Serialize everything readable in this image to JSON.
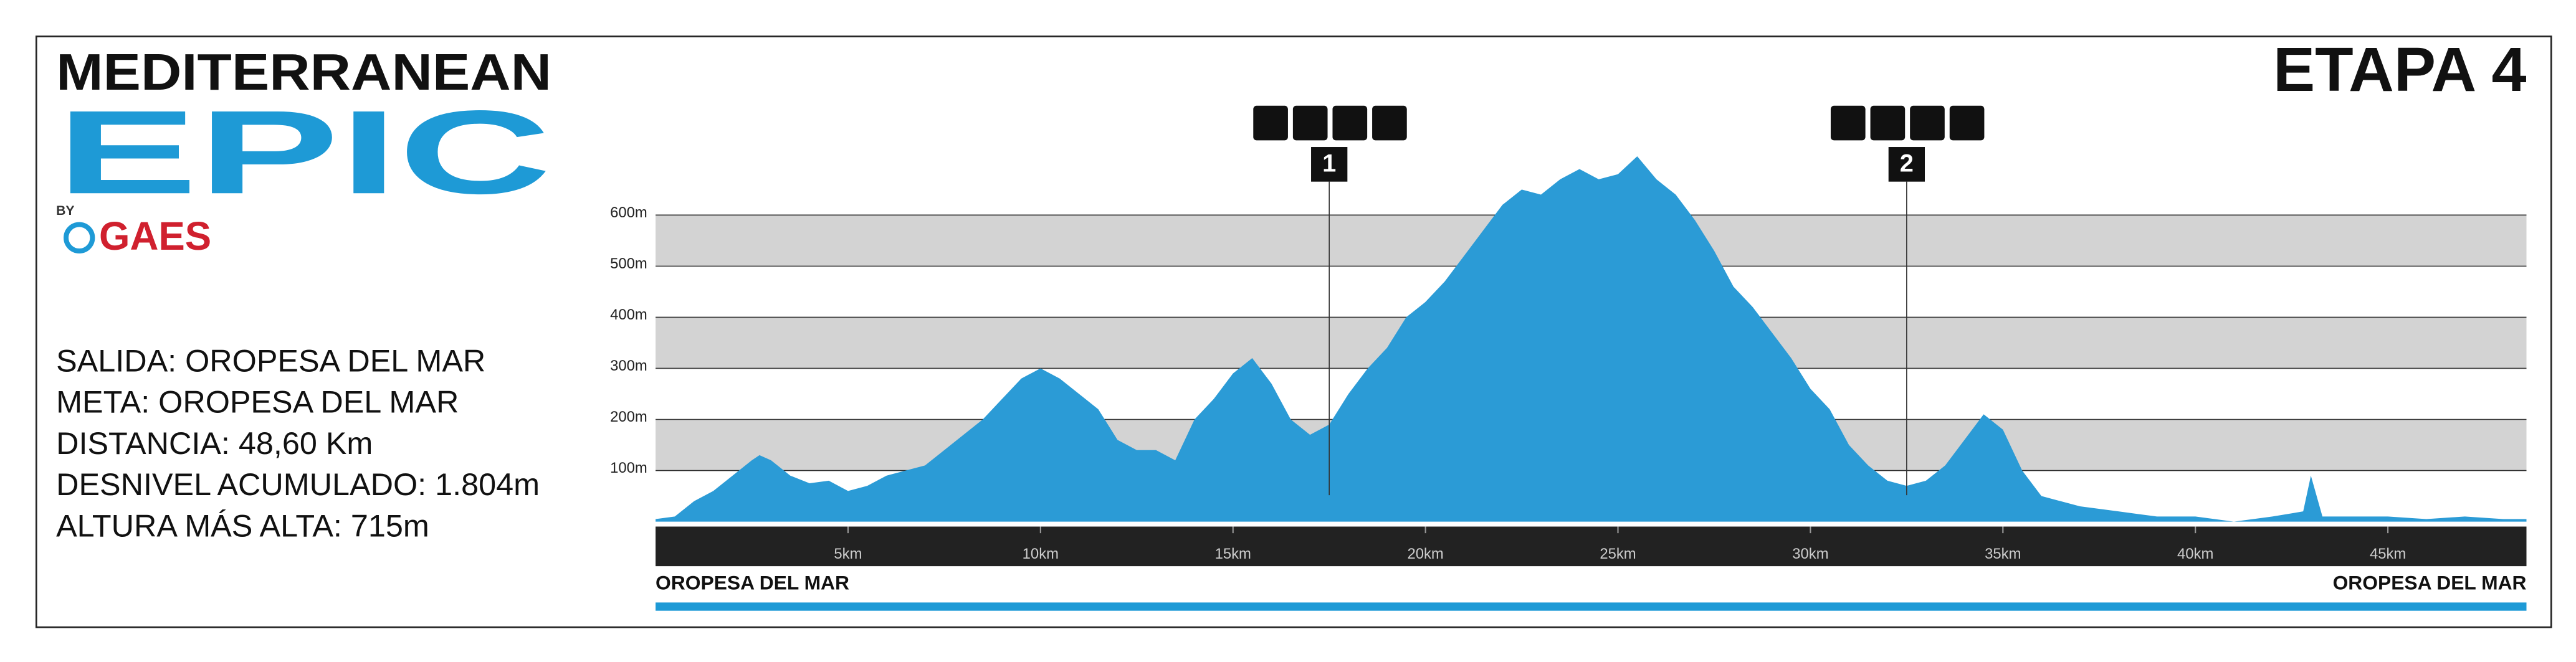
{
  "logo": {
    "line1": "MEDITERRANEAN",
    "line2": "EPIC",
    "by": "BY",
    "sponsor": "GAES"
  },
  "info": [
    "SALIDA: OROPESA DEL MAR",
    "META: OROPESA DEL MAR",
    "DISTANCIA: 48,60 Km",
    "DESNIVEL ACUMULADO: 1.804m",
    "ALTURA MÁS ALTA: 715m"
  ],
  "chart_data": {
    "type": "area",
    "title": "ETAPA 4",
    "color": "#2b9bd6",
    "x": [
      0,
      0.5,
      1,
      1.5,
      2,
      2.5,
      2.7,
      3,
      3.5,
      4,
      4.5,
      5,
      5.5,
      6,
      6.5,
      7,
      7.5,
      8,
      8.5,
      9,
      9.5,
      10,
      10.5,
      11,
      11.5,
      12,
      12.5,
      13,
      13.5,
      14,
      14.5,
      15,
      15.5,
      16,
      16.5,
      17,
      17.5,
      18,
      18.5,
      19,
      19.5,
      20,
      20.5,
      21,
      21.5,
      22,
      22.5,
      23,
      23.5,
      24,
      24.5,
      25,
      25.5,
      26,
      26.5,
      27,
      27.5,
      28,
      28.5,
      29,
      29.5,
      30,
      30.5,
      31,
      31.5,
      32,
      32.5,
      33,
      33.5,
      34,
      34.5,
      35,
      35.5,
      36,
      36.5,
      37,
      38,
      39,
      40,
      41,
      42,
      42.8,
      43,
      43.3,
      44,
      45,
      46,
      47,
      48,
      48.6
    ],
    "values": [
      5,
      10,
      40,
      60,
      90,
      120,
      130,
      120,
      90,
      75,
      80,
      60,
      70,
      90,
      100,
      110,
      140,
      170,
      200,
      240,
      280,
      300,
      280,
      250,
      220,
      160,
      140,
      140,
      120,
      200,
      240,
      290,
      320,
      270,
      200,
      170,
      190,
      250,
      300,
      340,
      400,
      430,
      470,
      520,
      570,
      620,
      650,
      640,
      670,
      690,
      670,
      680,
      715,
      670,
      640,
      590,
      530,
      460,
      420,
      370,
      320,
      260,
      220,
      150,
      110,
      80,
      70,
      80,
      110,
      160,
      210,
      180,
      100,
      50,
      40,
      30,
      20,
      10,
      10,
      0,
      10,
      20,
      90,
      10,
      10,
      10,
      5,
      10,
      5,
      5
    ],
    "xlim": [
      0,
      48.6
    ],
    "ylim": [
      0,
      730
    ],
    "xticks": [
      {
        "value": 5,
        "label": "5km"
      },
      {
        "value": 10,
        "label": "10km"
      },
      {
        "value": 15,
        "label": "15km"
      },
      {
        "value": 20,
        "label": "20km"
      },
      {
        "value": 25,
        "label": "25km"
      },
      {
        "value": 30,
        "label": "30km"
      },
      {
        "value": 35,
        "label": "35km"
      },
      {
        "value": 40,
        "label": "40km"
      },
      {
        "value": 45,
        "label": "45km"
      }
    ],
    "yticks": [
      {
        "value": 100,
        "label": "100m"
      },
      {
        "value": 200,
        "label": "200m"
      },
      {
        "value": 300,
        "label": "300m"
      },
      {
        "value": 400,
        "label": "400m"
      },
      {
        "value": 500,
        "label": "500m"
      },
      {
        "value": 600,
        "label": "600m"
      }
    ],
    "grid": true,
    "start_label": "OROPESA DEL MAR",
    "finish_label": "OROPESA DEL MAR",
    "annotations": [
      {
        "x": 17.5,
        "label": "1"
      },
      {
        "x": 32.5,
        "label": "2"
      }
    ]
  }
}
